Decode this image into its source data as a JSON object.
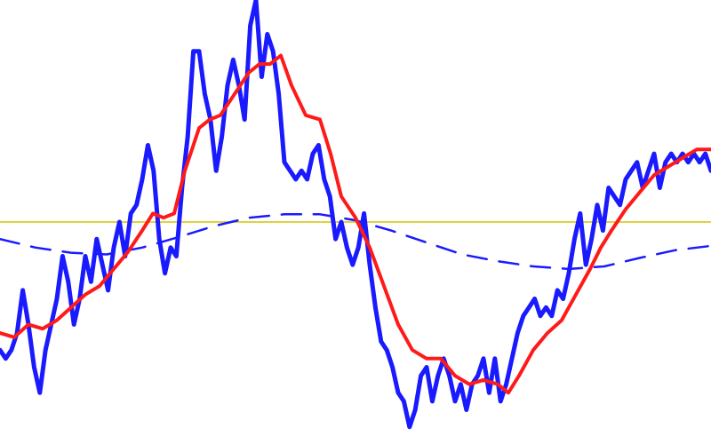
{
  "chart_data": {
    "type": "line",
    "title": "",
    "xlabel": "",
    "ylabel": "",
    "grid": false,
    "legend": "none",
    "xlim": [
      0,
      100
    ],
    "ylim": [
      -2.6,
      2.6
    ],
    "series": [
      {
        "key": "raw",
        "color": "#1a1aff",
        "style": "solid",
        "points": [
          [
            0.0,
            -1.5
          ],
          [
            0.8,
            -1.6
          ],
          [
            1.6,
            -1.5
          ],
          [
            2.4,
            -1.3
          ],
          [
            3.2,
            -0.8
          ],
          [
            4.0,
            -1.2
          ],
          [
            4.8,
            -1.7
          ],
          [
            5.6,
            -2.0
          ],
          [
            6.4,
            -1.5
          ],
          [
            7.2,
            -1.2
          ],
          [
            8.0,
            -0.9
          ],
          [
            8.8,
            -0.4
          ],
          [
            9.6,
            -0.7
          ],
          [
            10.4,
            -1.2
          ],
          [
            11.2,
            -0.9
          ],
          [
            12.0,
            -0.4
          ],
          [
            12.8,
            -0.7
          ],
          [
            13.6,
            -0.2
          ],
          [
            14.4,
            -0.5
          ],
          [
            15.2,
            -0.8
          ],
          [
            16.0,
            -0.3
          ],
          [
            16.8,
            0.0
          ],
          [
            17.6,
            -0.4
          ],
          [
            18.4,
            0.1
          ],
          [
            19.2,
            0.2
          ],
          [
            20.0,
            0.5
          ],
          [
            20.8,
            0.9
          ],
          [
            21.6,
            0.6
          ],
          [
            22.4,
            -0.2
          ],
          [
            23.2,
            -0.6
          ],
          [
            24.0,
            -0.3
          ],
          [
            24.8,
            -0.4
          ],
          [
            25.6,
            0.4
          ],
          [
            26.4,
            1.0
          ],
          [
            27.2,
            2.0
          ],
          [
            28.0,
            2.0
          ],
          [
            28.8,
            1.5
          ],
          [
            29.6,
            1.2
          ],
          [
            30.4,
            0.6
          ],
          [
            31.2,
            1.0
          ],
          [
            32.0,
            1.6
          ],
          [
            32.8,
            1.9
          ],
          [
            33.6,
            1.6
          ],
          [
            34.4,
            1.2
          ],
          [
            35.2,
            2.3
          ],
          [
            36.0,
            2.6
          ],
          [
            36.8,
            1.7
          ],
          [
            37.6,
            2.2
          ],
          [
            38.4,
            2.0
          ],
          [
            39.2,
            1.5
          ],
          [
            40.0,
            0.7
          ],
          [
            40.8,
            0.6
          ],
          [
            41.6,
            0.5
          ],
          [
            42.4,
            0.6
          ],
          [
            43.2,
            0.5
          ],
          [
            44.0,
            0.8
          ],
          [
            44.8,
            0.9
          ],
          [
            45.6,
            0.5
          ],
          [
            46.4,
            0.3
          ],
          [
            47.2,
            -0.2
          ],
          [
            48.0,
            0.0
          ],
          [
            48.8,
            -0.3
          ],
          [
            49.6,
            -0.5
          ],
          [
            50.4,
            -0.3
          ],
          [
            51.2,
            0.1
          ],
          [
            52.0,
            -0.5
          ],
          [
            52.8,
            -1.0
          ],
          [
            53.6,
            -1.4
          ],
          [
            54.4,
            -1.5
          ],
          [
            55.2,
            -1.7
          ],
          [
            56.0,
            -2.0
          ],
          [
            56.8,
            -2.1
          ],
          [
            57.6,
            -2.4
          ],
          [
            58.4,
            -2.2
          ],
          [
            59.2,
            -1.8
          ],
          [
            60.0,
            -1.7
          ],
          [
            60.8,
            -2.1
          ],
          [
            61.6,
            -1.8
          ],
          [
            62.4,
            -1.6
          ],
          [
            63.2,
            -1.8
          ],
          [
            64.0,
            -2.1
          ],
          [
            64.8,
            -1.9
          ],
          [
            65.6,
            -2.2
          ],
          [
            66.4,
            -1.9
          ],
          [
            67.2,
            -1.8
          ],
          [
            68.0,
            -1.6
          ],
          [
            68.8,
            -2.0
          ],
          [
            69.6,
            -1.6
          ],
          [
            70.4,
            -2.1
          ],
          [
            71.2,
            -1.9
          ],
          [
            72.0,
            -1.6
          ],
          [
            72.8,
            -1.3
          ],
          [
            73.6,
            -1.1
          ],
          [
            74.4,
            -1.0
          ],
          [
            75.2,
            -0.9
          ],
          [
            76.0,
            -1.1
          ],
          [
            76.8,
            -1.0
          ],
          [
            77.6,
            -1.1
          ],
          [
            78.4,
            -0.8
          ],
          [
            79.2,
            -0.9
          ],
          [
            80.0,
            -0.6
          ],
          [
            80.8,
            -0.2
          ],
          [
            81.6,
            0.1
          ],
          [
            82.4,
            -0.5
          ],
          [
            83.2,
            -0.2
          ],
          [
            84.0,
            0.2
          ],
          [
            84.8,
            -0.1
          ],
          [
            85.6,
            0.4
          ],
          [
            86.4,
            0.3
          ],
          [
            87.2,
            0.2
          ],
          [
            88.0,
            0.5
          ],
          [
            88.8,
            0.6
          ],
          [
            89.6,
            0.7
          ],
          [
            90.4,
            0.4
          ],
          [
            91.2,
            0.6
          ],
          [
            92.0,
            0.8
          ],
          [
            92.8,
            0.4
          ],
          [
            93.6,
            0.7
          ],
          [
            94.4,
            0.8
          ],
          [
            95.2,
            0.7
          ],
          [
            96.0,
            0.8
          ],
          [
            96.8,
            0.7
          ],
          [
            97.6,
            0.8
          ],
          [
            98.4,
            0.7
          ],
          [
            99.2,
            0.8
          ],
          [
            100.0,
            0.6
          ]
        ]
      },
      {
        "key": "smoothed",
        "color": "#ff1a1a",
        "style": "solid",
        "points": [
          [
            0.0,
            -1.3
          ],
          [
            2.0,
            -1.35
          ],
          [
            4.0,
            -1.2
          ],
          [
            6.0,
            -1.25
          ],
          [
            8.0,
            -1.15
          ],
          [
            10.0,
            -1.0
          ],
          [
            12.0,
            -0.85
          ],
          [
            14.0,
            -0.75
          ],
          [
            16.0,
            -0.55
          ],
          [
            18.0,
            -0.35
          ],
          [
            20.0,
            -0.1
          ],
          [
            21.5,
            0.1
          ],
          [
            23.0,
            0.05
          ],
          [
            24.5,
            0.1
          ],
          [
            26.0,
            0.6
          ],
          [
            28.0,
            1.1
          ],
          [
            29.5,
            1.2
          ],
          [
            31.0,
            1.25
          ],
          [
            33.0,
            1.5
          ],
          [
            35.0,
            1.75
          ],
          [
            36.5,
            1.85
          ],
          [
            38.0,
            1.85
          ],
          [
            39.5,
            1.95
          ],
          [
            41.0,
            1.6
          ],
          [
            43.0,
            1.25
          ],
          [
            45.0,
            1.2
          ],
          [
            46.5,
            0.8
          ],
          [
            48.0,
            0.3
          ],
          [
            50.0,
            0.05
          ],
          [
            52.0,
            -0.3
          ],
          [
            54.0,
            -0.75
          ],
          [
            56.0,
            -1.2
          ],
          [
            58.0,
            -1.5
          ],
          [
            60.0,
            -1.6
          ],
          [
            62.0,
            -1.6
          ],
          [
            64.0,
            -1.8
          ],
          [
            66.0,
            -1.9
          ],
          [
            68.0,
            -1.85
          ],
          [
            70.0,
            -1.9
          ],
          [
            71.5,
            -2.0
          ],
          [
            73.0,
            -1.8
          ],
          [
            75.0,
            -1.5
          ],
          [
            77.0,
            -1.3
          ],
          [
            79.0,
            -1.15
          ],
          [
            81.0,
            -0.85
          ],
          [
            83.0,
            -0.55
          ],
          [
            84.5,
            -0.3
          ],
          [
            86.0,
            -0.1
          ],
          [
            88.0,
            0.15
          ],
          [
            90.0,
            0.35
          ],
          [
            92.0,
            0.55
          ],
          [
            94.0,
            0.65
          ],
          [
            96.0,
            0.75
          ],
          [
            98.0,
            0.85
          ],
          [
            100.0,
            0.85
          ]
        ]
      },
      {
        "key": "trend",
        "color": "#1a1aff",
        "style": "dashed",
        "points": [
          [
            0.0,
            -0.2
          ],
          [
            5.0,
            -0.3
          ],
          [
            10.0,
            -0.36
          ],
          [
            15.0,
            -0.38
          ],
          [
            20.0,
            -0.3
          ],
          [
            25.0,
            -0.18
          ],
          [
            30.0,
            -0.05
          ],
          [
            35.0,
            0.05
          ],
          [
            40.0,
            0.09
          ],
          [
            45.0,
            0.09
          ],
          [
            50.0,
            0.02
          ],
          [
            55.0,
            -0.1
          ],
          [
            60.0,
            -0.24
          ],
          [
            65.0,
            -0.38
          ],
          [
            70.0,
            -0.46
          ],
          [
            75.0,
            -0.52
          ],
          [
            80.0,
            -0.55
          ],
          [
            85.0,
            -0.52
          ],
          [
            90.0,
            -0.42
          ],
          [
            95.0,
            -0.33
          ],
          [
            100.0,
            -0.28
          ]
        ]
      }
    ],
    "reference_lines": [
      {
        "y": 0.0,
        "color": "#d4c400",
        "style": "solid"
      }
    ]
  }
}
